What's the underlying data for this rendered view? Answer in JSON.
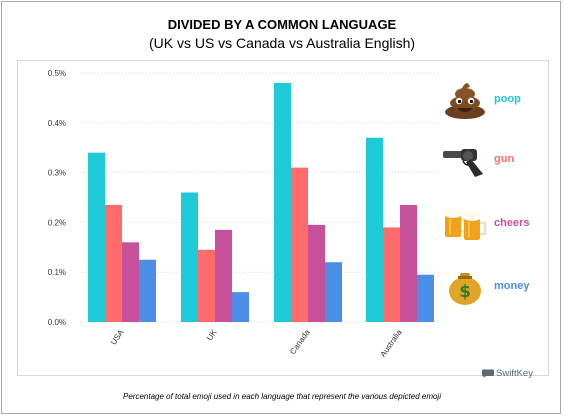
{
  "title": "DIVIDED BY A COMMON LANGUAGE",
  "subtitle": "(UK vs US vs Canada vs Australia English)",
  "caption": "Percentage of total emoji used in each language that represent the various depicted emoji",
  "brand": "SwiftKey",
  "brand_icon": "swiftkey-bubble-icon",
  "chart_data": {
    "type": "bar",
    "categories": [
      "USA",
      "UK",
      "Canada",
      "Australia"
    ],
    "series": [
      {
        "name": "poop",
        "icon": "poop-emoji-icon",
        "color": "#1ec9d8",
        "values": [
          0.34,
          0.26,
          0.48,
          0.37
        ]
      },
      {
        "name": "gun",
        "icon": "pistol-emoji-icon",
        "color": "#ff6b6b",
        "values": [
          0.235,
          0.145,
          0.31,
          0.19
        ]
      },
      {
        "name": "cheers",
        "icon": "beer-mugs-emoji-icon",
        "color": "#c7509b",
        "values": [
          0.16,
          0.185,
          0.195,
          0.235
        ]
      },
      {
        "name": "money",
        "icon": "money-bag-emoji-icon",
        "color": "#4a8ee8",
        "values": [
          0.125,
          0.06,
          0.12,
          0.095
        ]
      }
    ],
    "ylim": [
      0,
      0.5
    ],
    "yticks": [
      "0.0%",
      "0.1%",
      "0.2%",
      "0.3%",
      "0.4%",
      "0.5%"
    ],
    "grid": true,
    "legend": "right"
  }
}
